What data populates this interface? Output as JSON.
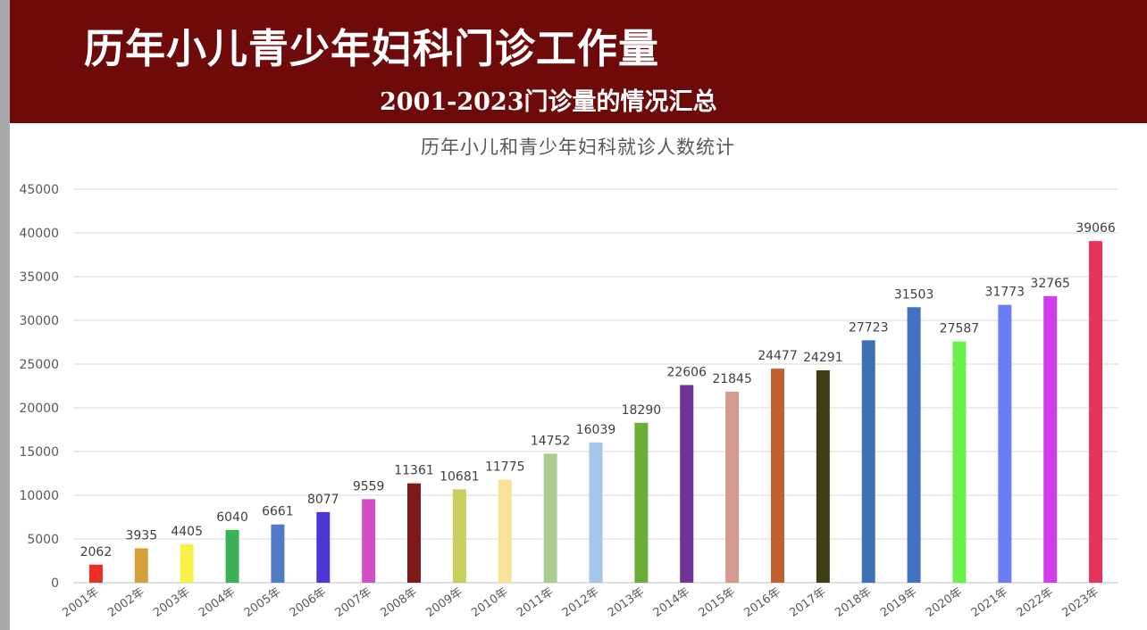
{
  "header": {
    "title": "历年小儿青少年妇科门诊工作量",
    "subtitle": "2001-2023门诊量的情况汇总"
  },
  "chart_data": {
    "type": "bar",
    "title": "历年小儿和青少年妇科就诊人数统计",
    "xlabel": "",
    "ylabel": "",
    "ylim": [
      0,
      45000
    ],
    "yticks": [
      0,
      5000,
      10000,
      15000,
      20000,
      25000,
      30000,
      35000,
      40000,
      45000
    ],
    "grid": true,
    "legend": "none",
    "categories": [
      "2001年",
      "2002年",
      "2003年",
      "2004年",
      "2005年",
      "2006年",
      "2007年",
      "2008年",
      "2009年",
      "2010年",
      "2011年",
      "2012年",
      "2013年",
      "2014年",
      "2015年",
      "2016年",
      "2017年",
      "2018年",
      "2019年",
      "2020年",
      "2021年",
      "2022年",
      "2023年"
    ],
    "values": [
      2062,
      3935,
      4405,
      6040,
      6661,
      8077,
      9559,
      11361,
      10681,
      11775,
      14752,
      16039,
      18290,
      22606,
      21845,
      24477,
      24291,
      27723,
      31503,
      27587,
      31773,
      32765,
      39066
    ],
    "colors": [
      "#ee2e24",
      "#d4a03a",
      "#f8f14a",
      "#3cb054",
      "#4f7cc4",
      "#4b37d6",
      "#d24ec6",
      "#7e1a1a",
      "#c8cf5c",
      "#fae29a",
      "#a9cc8f",
      "#a4c6e8",
      "#6aad38",
      "#6c3597",
      "#d39b8d",
      "#c0612e",
      "#3f3e14",
      "#3b72b5",
      "#4372c0",
      "#6af24a",
      "#6b7df5",
      "#d33cea",
      "#e4345c"
    ]
  }
}
